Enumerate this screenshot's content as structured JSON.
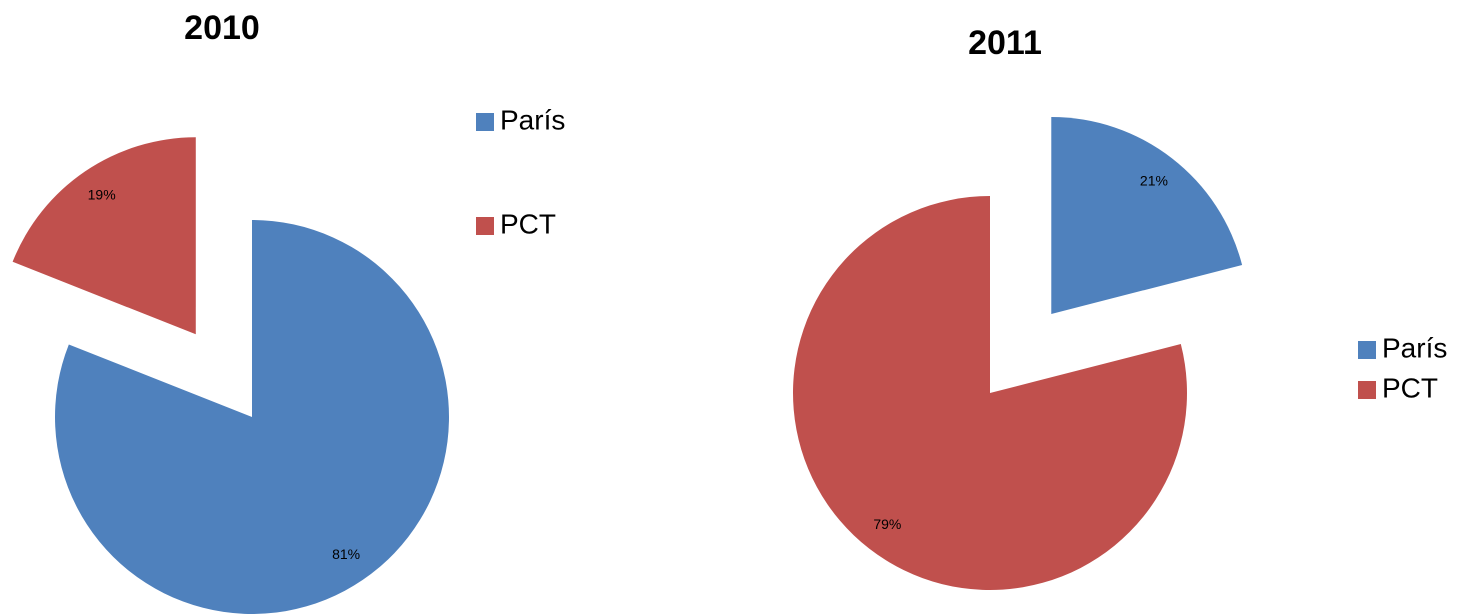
{
  "chart_data": [
    {
      "type": "pie",
      "title": "2010",
      "categories": [
        "París",
        "PCT"
      ],
      "values": [
        81,
        19
      ],
      "value_labels": [
        "81%",
        "19%"
      ],
      "colors": [
        "#4f81bd",
        "#c0504d"
      ],
      "explode": [
        false,
        true
      ]
    },
    {
      "type": "pie",
      "title": "2011",
      "categories": [
        "París",
        "PCT"
      ],
      "values": [
        21,
        79
      ],
      "value_labels": [
        "21%",
        "79%"
      ],
      "colors": [
        "#4f81bd",
        "#c0504d"
      ],
      "explode": [
        true,
        false
      ]
    }
  ]
}
